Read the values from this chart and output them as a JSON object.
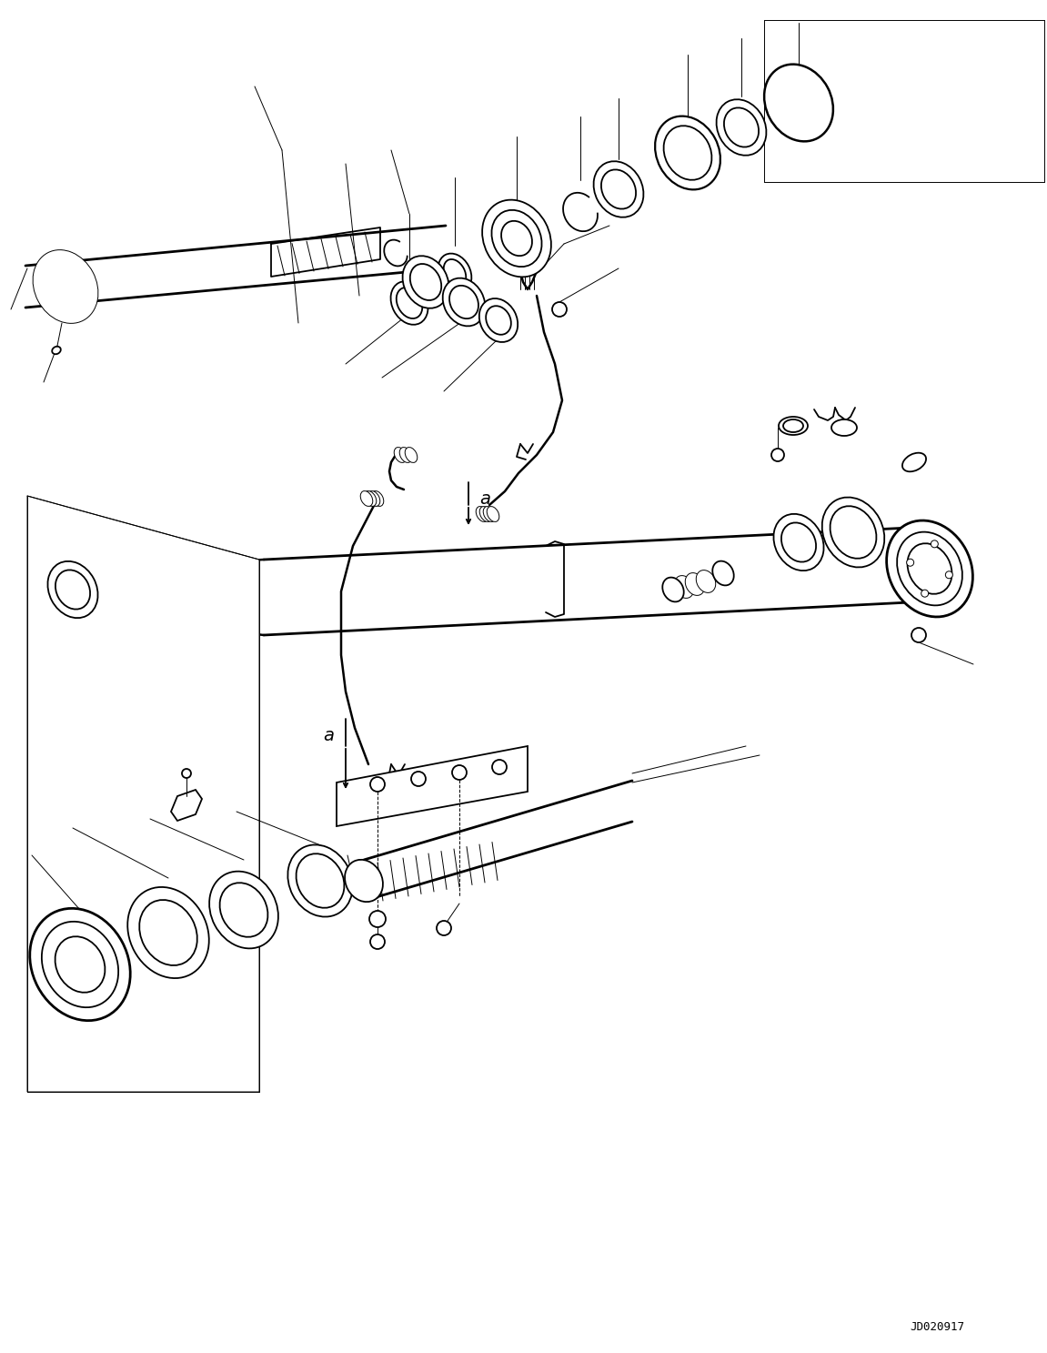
{
  "background_color": "#ffffff",
  "line_color": "#000000",
  "figure_width": 11.51,
  "figure_height": 14.87,
  "watermark": "JD020917",
  "lw": 1.3,
  "tlw": 0.7,
  "thk": 2.0
}
